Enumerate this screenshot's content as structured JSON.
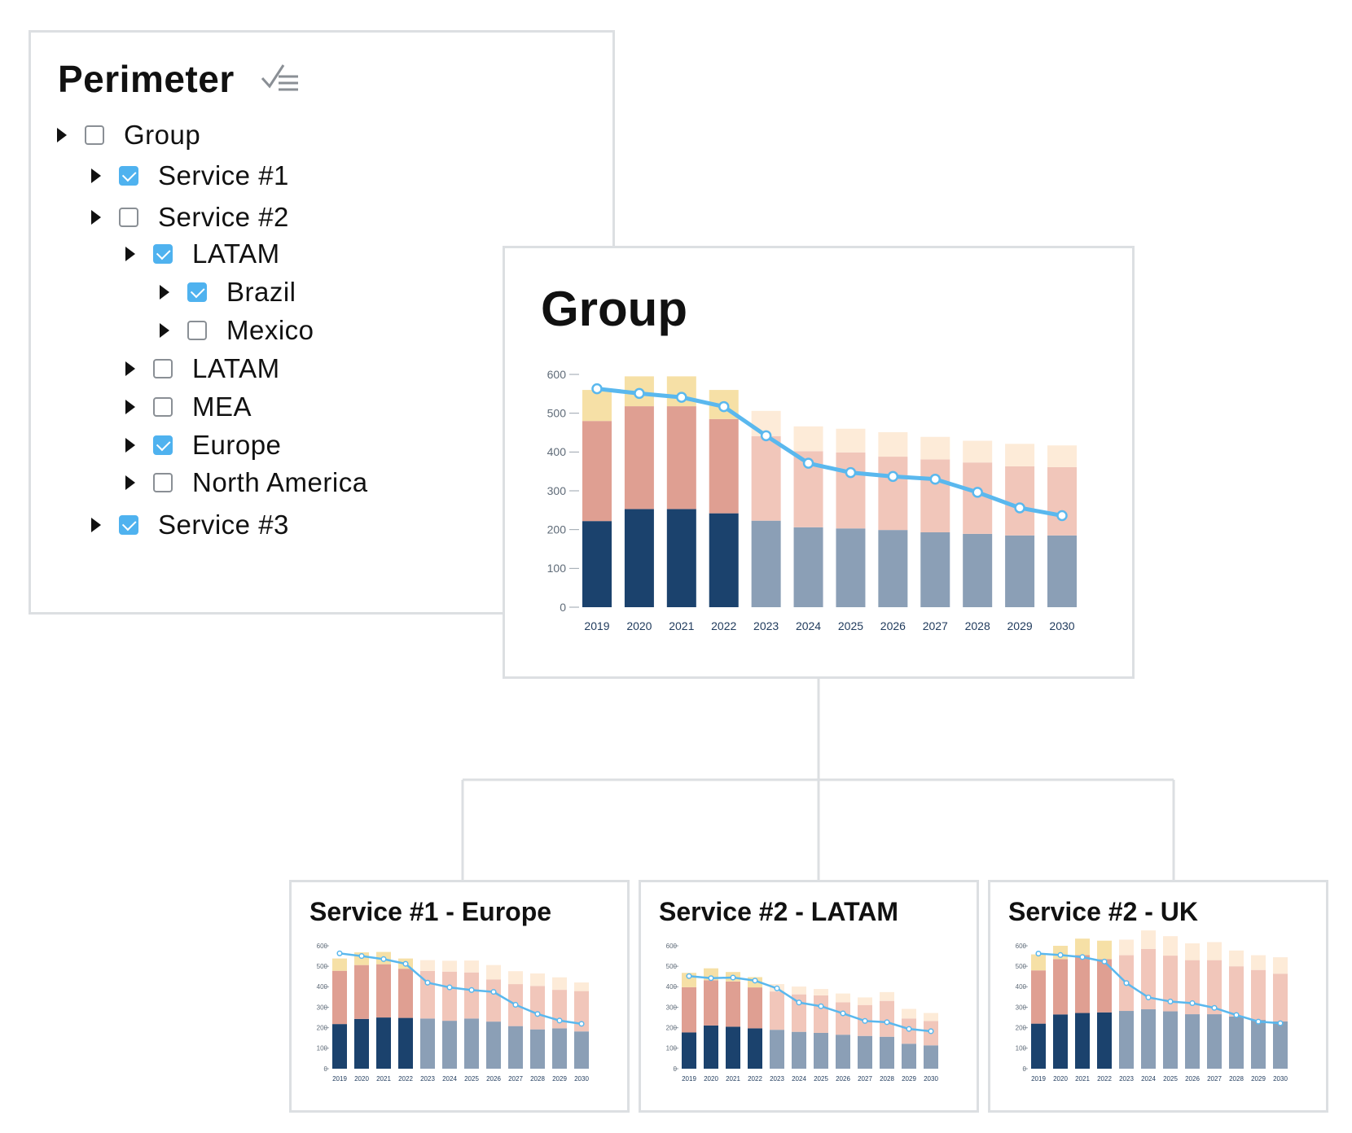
{
  "perimeter": {
    "title": "Perimeter",
    "filter_icon": "checklist-filter-icon",
    "tree": [
      {
        "label": "Group",
        "checked": false,
        "level": 0
      },
      {
        "label": "Service #1",
        "checked": true,
        "level": 1
      },
      {
        "label": "Service #2",
        "checked": false,
        "level": 1
      },
      {
        "label": "LATAM",
        "checked": true,
        "level": 2
      },
      {
        "label": "Brazil",
        "checked": true,
        "level": 3
      },
      {
        "label": "Mexico",
        "checked": false,
        "level": 3
      },
      {
        "label": "LATAM",
        "checked": false,
        "level": 2
      },
      {
        "label": "MEA",
        "checked": false,
        "level": 2
      },
      {
        "label": "Europe",
        "checked": true,
        "level": 2
      },
      {
        "label": "North America",
        "checked": false,
        "level": 2
      },
      {
        "label": "Service #3",
        "checked": true,
        "level": 1
      }
    ]
  },
  "colors": {
    "bottom_actual": "#1b426d",
    "bottom_forecast": "#8b9fb6",
    "middle_actual": "#df9f92",
    "middle_forecast": "#f1c6ba",
    "top_actual": "#f6e0a6",
    "top_forecast": "#fdebd8",
    "line": "#5ab8ee",
    "connector": "#dcdfe2"
  },
  "chart_data": [
    {
      "type": "bar",
      "title": "Group",
      "categories": [
        "2019",
        "2020",
        "2021",
        "2022",
        "2023",
        "2024",
        "2025",
        "2026",
        "2027",
        "2028",
        "2029",
        "2030"
      ],
      "forecast_from_index": 4,
      "ylim": [
        0,
        600
      ],
      "yticks": [
        0,
        100,
        200,
        300,
        400,
        500,
        600
      ],
      "series": [
        {
          "values": [
            222,
            253,
            253,
            242,
            223,
            206,
            203,
            199,
            193,
            189,
            185,
            185
          ]
        },
        {
          "values": [
            258,
            265,
            265,
            243,
            218,
            196,
            196,
            189,
            188,
            184,
            178,
            176
          ]
        },
        {
          "values": [
            80,
            77,
            77,
            75,
            65,
            64,
            61,
            63,
            58,
            56,
            58,
            56
          ]
        },
        {
          "values": [
            563,
            551,
            541,
            517,
            442,
            371,
            347,
            337,
            330,
            296,
            256,
            236
          ],
          "style": "line"
        }
      ]
    },
    {
      "type": "bar",
      "title": "Service #1 - Europe",
      "categories": [
        "2019",
        "2020",
        "2021",
        "2022",
        "2023",
        "2024",
        "2025",
        "2026",
        "2027",
        "2028",
        "2029",
        "2030"
      ],
      "forecast_from_index": 4,
      "ylim": [
        0,
        600
      ],
      "yticks": [
        0,
        100,
        200,
        300,
        400,
        500,
        600
      ],
      "series": [
        {
          "values": [
            218,
            243,
            250,
            248,
            245,
            234,
            245,
            230,
            208,
            192,
            197,
            182
          ]
        },
        {
          "values": [
            260,
            263,
            260,
            240,
            232,
            240,
            225,
            206,
            205,
            212,
            188,
            197
          ]
        },
        {
          "values": [
            60,
            62,
            60,
            50,
            53,
            53,
            58,
            70,
            63,
            61,
            61,
            42
          ]
        },
        {
          "values": [
            563,
            550,
            535,
            512,
            420,
            397,
            384,
            375,
            312,
            267,
            235,
            219
          ],
          "style": "line"
        }
      ]
    },
    {
      "type": "bar",
      "title": "Service #2 - LATAM",
      "categories": [
        "2019",
        "2020",
        "2021",
        "2022",
        "2023",
        "2024",
        "2025",
        "2026",
        "2027",
        "2028",
        "2029",
        "2030"
      ],
      "forecast_from_index": 4,
      "ylim": [
        0,
        600
      ],
      "yticks": [
        0,
        100,
        200,
        300,
        400,
        500,
        600
      ],
      "series": [
        {
          "values": [
            177,
            211,
            205,
            197,
            190,
            180,
            175,
            166,
            160,
            156,
            122,
            114
          ]
        },
        {
          "values": [
            221,
            221,
            221,
            200,
            187,
            183,
            183,
            158,
            151,
            175,
            123,
            119
          ]
        },
        {
          "values": [
            70,
            58,
            46,
            50,
            36,
            38,
            31,
            43,
            37,
            43,
            47,
            39
          ]
        },
        {
          "values": [
            452,
            442,
            445,
            430,
            392,
            323,
            305,
            270,
            233,
            227,
            194,
            183
          ],
          "style": "line"
        }
      ]
    },
    {
      "type": "bar",
      "title": "Service #2 - UK",
      "categories": [
        "2019",
        "2020",
        "2021",
        "2022",
        "2023",
        "2024",
        "2025",
        "2026",
        "2027",
        "2028",
        "2029",
        "2030"
      ],
      "forecast_from_index": 4,
      "ylim": [
        0,
        600
      ],
      "yticks": [
        0,
        100,
        200,
        300,
        400,
        500,
        600
      ],
      "series": [
        {
          "values": [
            220,
            265,
            272,
            275,
            282,
            290,
            280,
            266,
            266,
            255,
            238,
            231
          ]
        },
        {
          "values": [
            260,
            270,
            283,
            260,
            272,
            295,
            272,
            264,
            264,
            245,
            244,
            233
          ]
        },
        {
          "values": [
            78,
            65,
            80,
            90,
            76,
            90,
            95,
            82,
            88,
            77,
            72,
            80
          ]
        },
        {
          "values": [
            562,
            555,
            545,
            523,
            418,
            348,
            328,
            320,
            297,
            262,
            230,
            222
          ],
          "style": "line"
        }
      ]
    }
  ]
}
